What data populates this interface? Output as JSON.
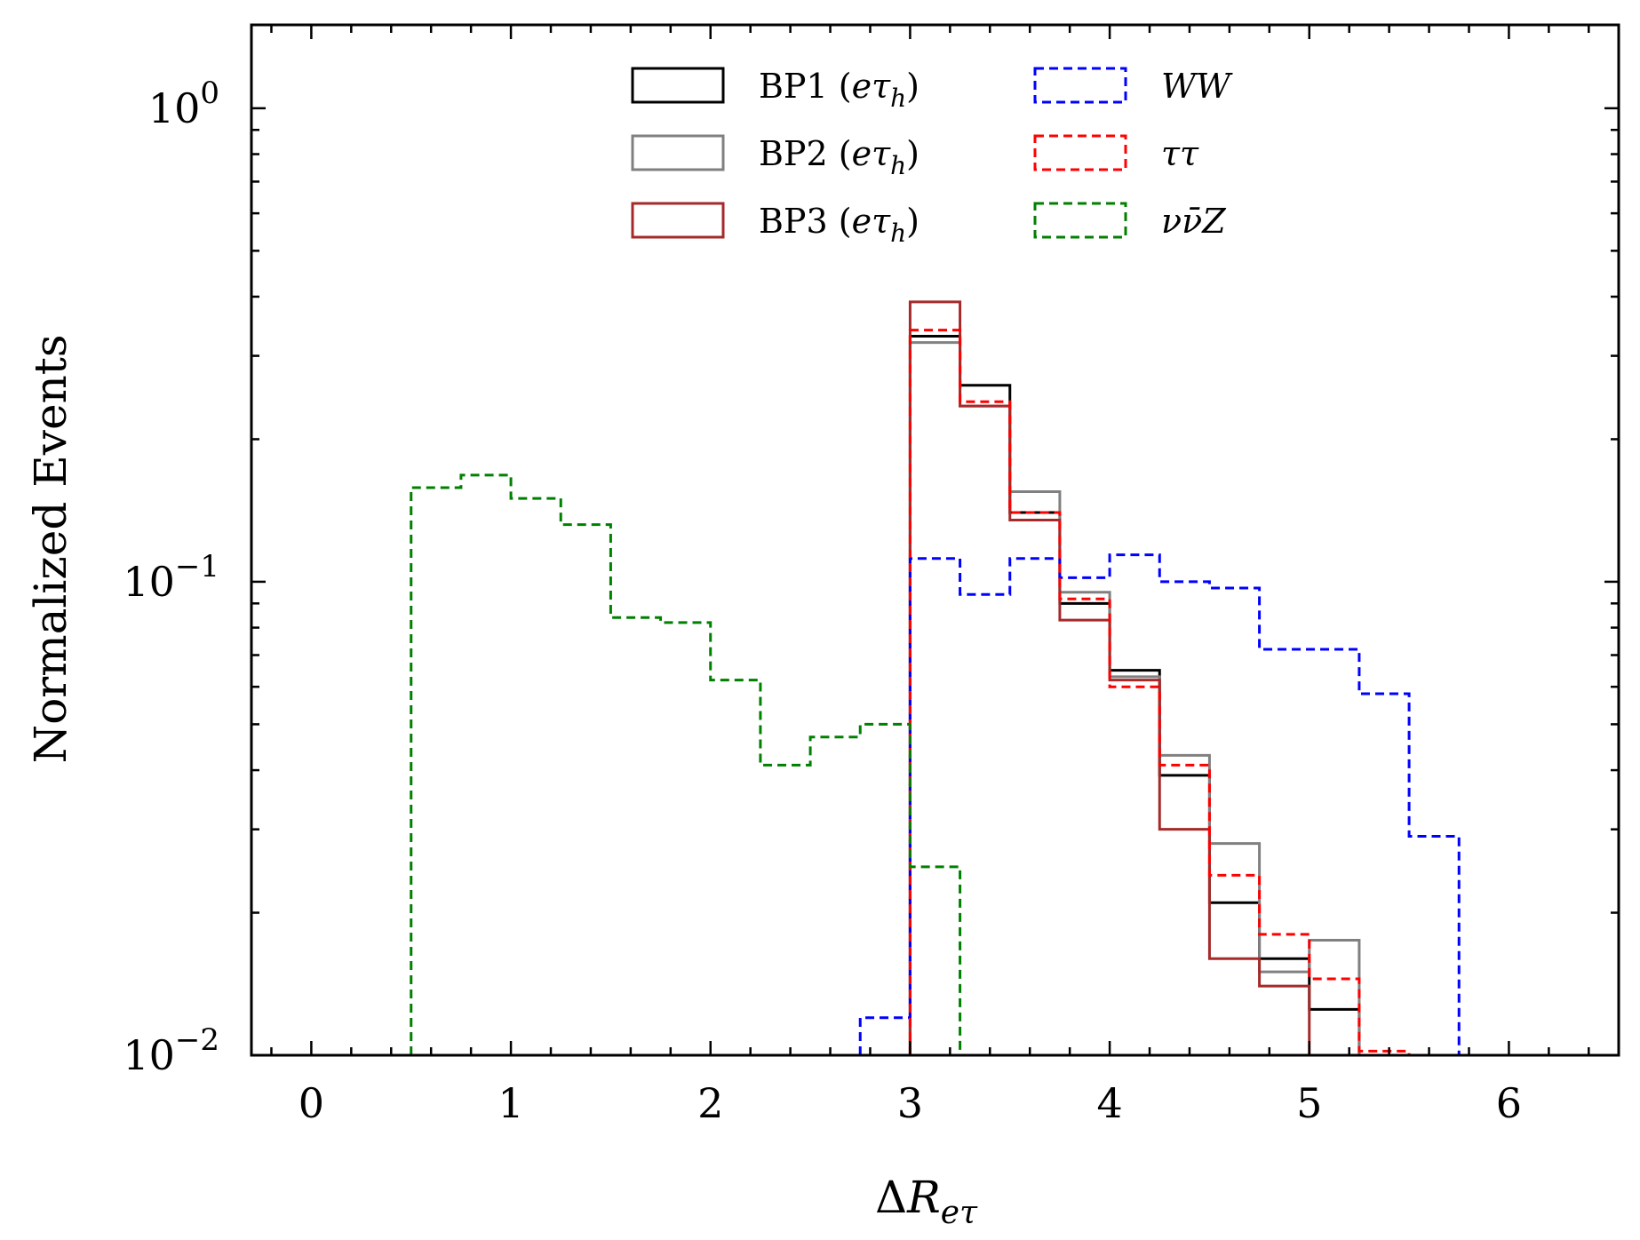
{
  "chart_data": {
    "type": "histogram",
    "xlabel": "ΔR_eτ",
    "ylabel": "Normalized Events",
    "xlim": [
      -0.3,
      6.55
    ],
    "ylim": [
      0.01,
      1.5
    ],
    "yscale": "log",
    "grid": false,
    "legend_position": "top-center",
    "x_ticks": [
      0,
      1,
      2,
      3,
      4,
      5,
      6
    ],
    "y_ticks": [
      {
        "value": 0.01,
        "base": "10",
        "exp": "−2"
      },
      {
        "value": 0.1,
        "base": "10",
        "exp": "−1"
      },
      {
        "value": 1,
        "base": "10",
        "exp": "0"
      }
    ],
    "bin_width": 0.25,
    "series": [
      {
        "name": "BP1 (eτ_h)",
        "label_main": "BP1 (",
        "label_var": "eτ",
        "label_sub": "h",
        "label_close": ")",
        "color": "#000000",
        "dashed": false,
        "width": 3,
        "bin_start": 3.0,
        "values": [
          0.33,
          0.26,
          0.14,
          0.09,
          0.065,
          0.039,
          0.021,
          0.016,
          0.0125
        ]
      },
      {
        "name": "BP2 (eτ_h)",
        "label_main": "BP2 (",
        "label_var": "eτ",
        "label_sub": "h",
        "label_close": ")",
        "color": "#808080",
        "dashed": false,
        "width": 3,
        "bin_start": 3.0,
        "values": [
          0.32,
          0.235,
          0.155,
          0.095,
          0.063,
          0.043,
          0.028,
          0.015,
          0.0175
        ]
      },
      {
        "name": "BP3 (eτ_h)",
        "label_main": "BP3 (",
        "label_var": "eτ",
        "label_sub": "h",
        "label_close": ")",
        "color": "#a52a2a",
        "dashed": false,
        "width": 3,
        "bin_start": 3.0,
        "values": [
          0.39,
          0.235,
          0.135,
          0.083,
          0.062,
          0.03,
          0.016,
          0.014
        ]
      },
      {
        "name": "WW",
        "label_main": "WW",
        "color": "#0000ff",
        "dashed": true,
        "width": 3,
        "bin_start": 2.75,
        "values": [
          0.012,
          0.112,
          0.094,
          0.112,
          0.102,
          0.114,
          0.1,
          0.097,
          0.072,
          0.072,
          0.058,
          0.029
        ]
      },
      {
        "name": "ττ",
        "label_main": "ττ",
        "color": "#ff0000",
        "dashed": true,
        "width": 3,
        "bin_start": 3.0,
        "values": [
          0.34,
          0.24,
          0.14,
          0.092,
          0.06,
          0.041,
          0.024,
          0.018,
          0.0145,
          0.0102
        ]
      },
      {
        "name": "νν̄Z",
        "label_main": "νν̄Z",
        "color": "#008000",
        "dashed": true,
        "width": 3,
        "bin_start": 0.5,
        "values": [
          0.158,
          0.168,
          0.15,
          0.132,
          0.084,
          0.082,
          0.062,
          0.041,
          0.047,
          0.05,
          0.025
        ]
      }
    ]
  }
}
